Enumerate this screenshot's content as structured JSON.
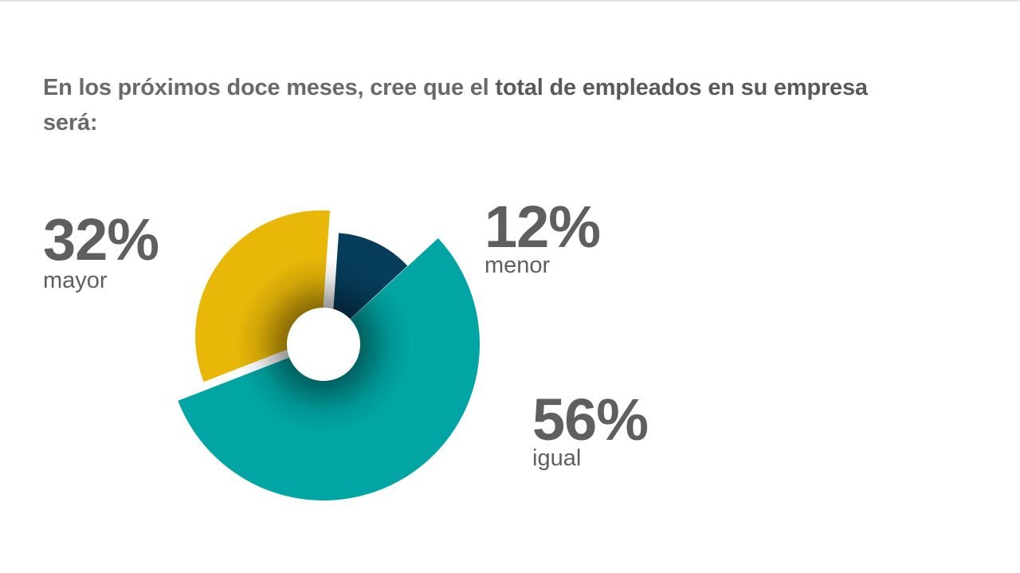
{
  "title": {
    "part1": "En los próximos doce meses, cree que el ",
    "part2": "total de empleados en su empresa",
    "part3": "será:"
  },
  "chart_data": {
    "type": "pie",
    "title": "En los próximos doce meses, cree que el total de empleados en su empresa será:",
    "slices": [
      {
        "label": "mayor",
        "value": 32,
        "display": "32%",
        "color": "#e8b708"
      },
      {
        "label": "menor",
        "value": 12,
        "display": "12%",
        "color": "#053d5b"
      },
      {
        "label": "igual",
        "value": 56,
        "display": "56%",
        "color": "#00a5a4"
      }
    ]
  }
}
